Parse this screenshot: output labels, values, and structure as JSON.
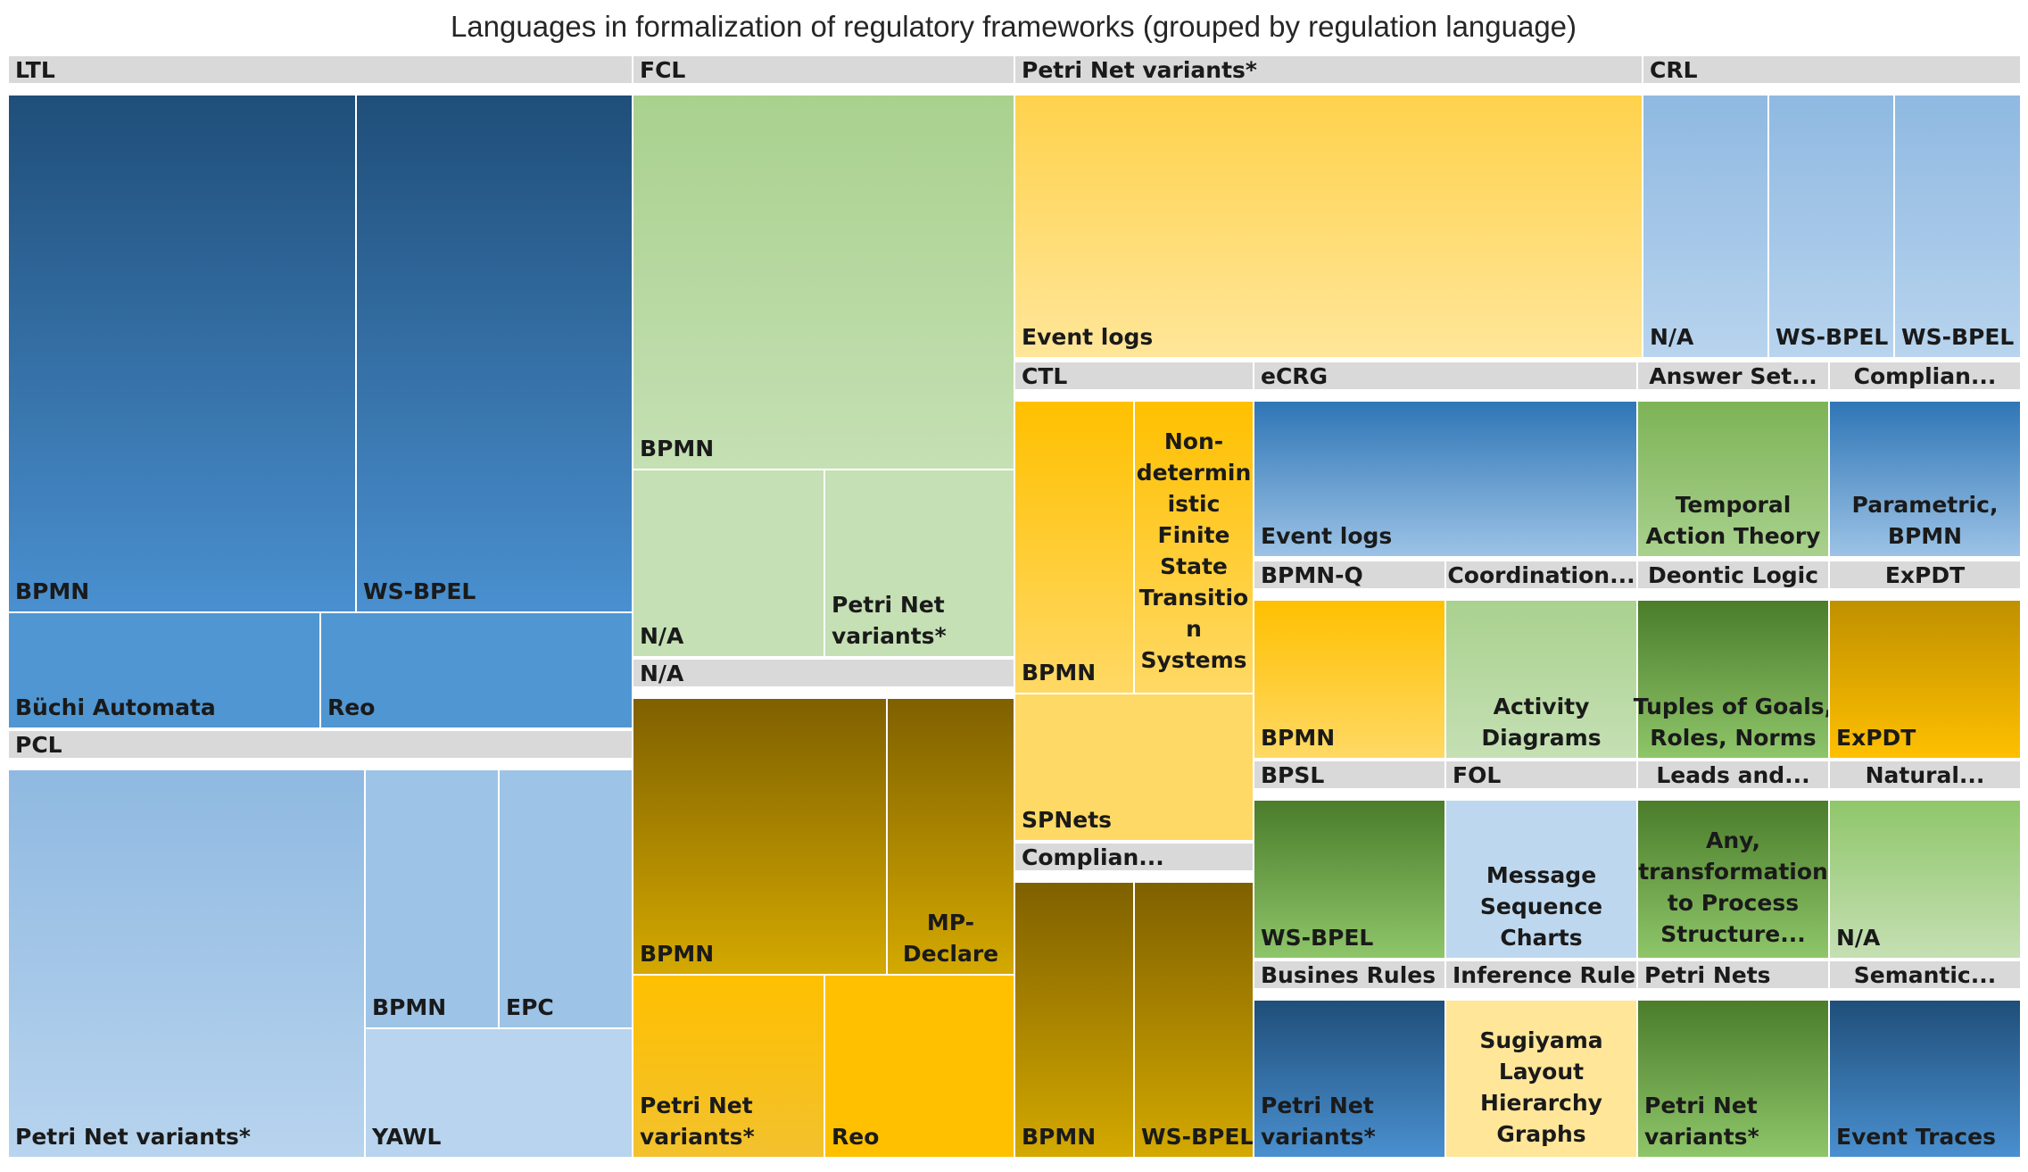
{
  "chart_data": {
    "type": "treemap",
    "title": "Languages in formalization of regulatory frameworks (grouped by regulation language)",
    "groups": [
      {
        "name": "LTL",
        "items": [
          "BPMN",
          "WS-BPEL",
          "Büchi Automata",
          "Reo"
        ]
      },
      {
        "name": "PCL",
        "items": [
          "Petri Net variants*",
          "BPMN",
          "EPC",
          "YAWL"
        ]
      },
      {
        "name": "FCL",
        "items": [
          "BPMN",
          "N/A",
          "Petri Net variants*"
        ]
      },
      {
        "name": "N/A",
        "items": [
          "BPMN",
          "MP-Declare",
          "Petri Net variants*",
          "Reo"
        ]
      },
      {
        "name": "Petri Net variants*",
        "items": [
          "Event logs"
        ]
      },
      {
        "name": "CRL",
        "items": [
          "N/A",
          "WS-BPEL",
          "WS-BPEL"
        ]
      },
      {
        "name": "CTL",
        "items": [
          "BPMN",
          "Non-deterministic Finite State Transition Systems",
          "SPNets"
        ]
      },
      {
        "name": "Complian...",
        "items": [
          "BPMN",
          "WS-BPEL"
        ]
      },
      {
        "name": "eCRG",
        "items": [
          "Event logs"
        ]
      },
      {
        "name": "Answer Set...",
        "items": [
          "Temporal Action Theory"
        ]
      },
      {
        "name": "Complian...",
        "items": [
          "Parametric, BPMN"
        ]
      },
      {
        "name": "BPMN-Q",
        "items": [
          "BPMN"
        ]
      },
      {
        "name": "Coordination...",
        "items": [
          "Activity Diagrams"
        ]
      },
      {
        "name": "Deontic Logic",
        "items": [
          "Tuples of Goals, Roles, Norms"
        ]
      },
      {
        "name": "ExPDT",
        "items": [
          "ExPDT"
        ]
      },
      {
        "name": "BPSL",
        "items": [
          "WS-BPEL"
        ]
      },
      {
        "name": "FOL",
        "items": [
          "Message Sequence Charts"
        ]
      },
      {
        "name": "Leads and...",
        "items": [
          "Any, transformation to Process Structure..."
        ]
      },
      {
        "name": "Natural...",
        "items": [
          "N/A"
        ]
      },
      {
        "name": "Busines Rules",
        "items": [
          "Petri Net variants*"
        ]
      },
      {
        "name": "Inference Rules",
        "items": [
          "Sugiyama Layout Hierarchy Graphs"
        ]
      },
      {
        "name": "Petri Nets",
        "items": [
          "Petri Net variants*"
        ]
      },
      {
        "name": "Semantic...",
        "items": [
          "Event Traces"
        ]
      }
    ]
  },
  "colors": {
    "header": "#d9d9d9",
    "dark_blue_top": "#1f4e79",
    "dark_blue_bottom": "#4a90d0",
    "mid_blue": "#5096d2",
    "light_blue": "#9dc3e6",
    "pale_blue": "#bdd7ee",
    "light_green": "#b4d69a",
    "pale_green": "#cde3bd",
    "dark_gold_top": "#7f6000",
    "dark_gold_bottom": "#d4a900",
    "gold": "#ffc000",
    "yellow_top": "#ffd24d",
    "yellow_bottom": "#ffe699",
    "green_top": "#4a7c2a",
    "green_bottom": "#8fc66a"
  }
}
